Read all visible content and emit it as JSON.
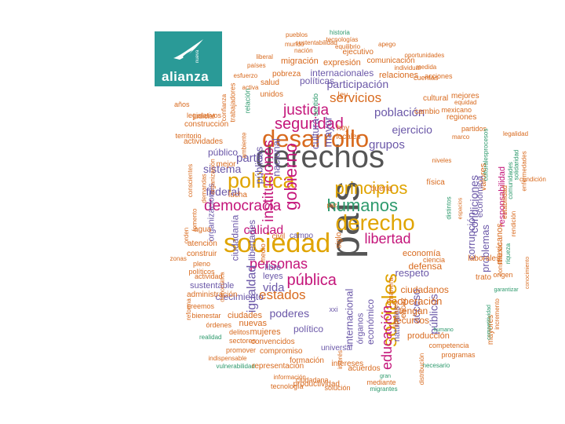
{
  "logo": {
    "brand": "alianza",
    "small": "nueva"
  },
  "colors": {
    "orange": "#d86a1e",
    "gray": "#555555",
    "gold": "#e0a400",
    "purple": "#6b58a8",
    "magenta": "#c4157a",
    "green": "#2e9a6d",
    "teal": "#2a9a97"
  },
  "words": [
    [
      "derechos",
      "gray"
    ],
    [
      "país",
      "gray"
    ],
    [
      "sociedad",
      "gold"
    ],
    [
      "desarrollo",
      "orange"
    ],
    [
      "política",
      "gold"
    ],
    [
      "derecho",
      "gold"
    ],
    [
      "principios",
      "gold"
    ],
    [
      "sociales",
      "gold"
    ],
    [
      "humanos",
      "green"
    ],
    [
      "democracia",
      "magenta"
    ],
    [
      "seguridad",
      "magenta"
    ],
    [
      "justicia",
      "magenta"
    ],
    [
      "personas",
      "magenta"
    ],
    [
      "pública",
      "magenta"
    ],
    [
      "libertad",
      "magenta"
    ],
    [
      "gobierno",
      "magenta"
    ],
    [
      "instituciones",
      "magenta"
    ],
    [
      "calidad",
      "magenta"
    ],
    [
      "educación",
      "magenta"
    ],
    [
      "igualdad",
      "purple"
    ],
    [
      "servicios",
      "orange"
    ],
    [
      "estados",
      "orange"
    ],
    [
      "población",
      "purple"
    ],
    [
      "públicos",
      "purple"
    ],
    [
      "acceso",
      "purple"
    ],
    [
      "vida",
      "purple"
    ],
    [
      "poderes",
      "purple"
    ],
    [
      "grupos",
      "purple"
    ],
    [
      "ejercicio",
      "purple"
    ],
    [
      "participación",
      "purple"
    ],
    [
      "parte",
      "purple"
    ],
    [
      "sistema",
      "purple"
    ],
    [
      "federal",
      "purple"
    ],
    [
      "mayor",
      "purple"
    ],
    [
      "cultura",
      "purple"
    ],
    [
      "nacional",
      "purple"
    ],
    [
      "públicas",
      "purple"
    ],
    [
      "respeto",
      "purple"
    ],
    [
      "defensa",
      "orange"
    ],
    [
      "ciudadanos",
      "orange"
    ],
    [
      "cooperación",
      "orange"
    ],
    [
      "tengan",
      "orange"
    ],
    [
      "recursos",
      "orange"
    ],
    [
      "crecimiento",
      "purple"
    ],
    [
      "sustentable",
      "purple"
    ],
    [
      "leyes",
      "purple"
    ],
    [
      "libre",
      "purple"
    ],
    [
      "político",
      "purple"
    ],
    [
      "mujeres",
      "orange"
    ],
    [
      "convencidos",
      "orange"
    ],
    [
      "compromiso",
      "orange"
    ],
    [
      "nuevas",
      "orange"
    ],
    [
      "ciudades",
      "orange"
    ],
    [
      "expresión",
      "orange"
    ],
    [
      "internacionales",
      "purple"
    ],
    [
      "políticas",
      "purple"
    ],
    [
      "relaciones",
      "orange"
    ],
    [
      "migración",
      "orange"
    ],
    [
      "pobreza",
      "orange"
    ],
    [
      "salud",
      "orange"
    ],
    [
      "unidos",
      "orange"
    ],
    [
      "ley",
      "orange"
    ],
    [
      "hoy",
      "orange"
    ],
    [
      "locales",
      "orange"
    ],
    [
      "cambio",
      "orange"
    ],
    [
      "regiones",
      "orange"
    ],
    [
      "cultural",
      "orange"
    ],
    [
      "mejores",
      "orange"
    ],
    [
      "mexicano",
      "orange"
    ],
    [
      "partidos",
      "orange"
    ],
    [
      "valores",
      "orange"
    ],
    [
      "condiciones",
      "purple"
    ],
    [
      "corrupción",
      "purple"
    ],
    [
      "económica",
      "purple"
    ],
    [
      "responsabilidad",
      "magenta"
    ],
    [
      "problemas",
      "purple"
    ],
    [
      "mexicanos",
      "orange"
    ],
    [
      "laborales",
      "orange"
    ],
    [
      "trato",
      "orange"
    ],
    [
      "origen",
      "orange"
    ],
    [
      "economía",
      "orange"
    ],
    [
      "buena",
      "orange"
    ],
    [
      "física",
      "orange"
    ],
    [
      "campo",
      "purple"
    ],
    [
      "civil",
      "orange"
    ],
    [
      "siglo",
      "orange"
    ],
    [
      "paz",
      "orange"
    ],
    [
      "público",
      "purple"
    ],
    [
      "mejor",
      "orange"
    ],
    [
      "lucha",
      "orange"
    ],
    [
      "ciudadanía",
      "purple"
    ],
    [
      "libertades",
      "purple"
    ],
    [
      "organizaciones",
      "purple"
    ],
    [
      "agua",
      "orange"
    ],
    [
      "atención",
      "orange"
    ],
    [
      "construir",
      "orange"
    ],
    [
      "pleno",
      "orange"
    ],
    [
      "zonas",
      "orange"
    ],
    [
      "políticos",
      "orange"
    ],
    [
      "actividad",
      "orange"
    ],
    [
      "administración",
      "orange"
    ],
    [
      "creemos",
      "orange"
    ],
    [
      "bienestar",
      "orange"
    ],
    [
      "órdenes",
      "orange"
    ],
    [
      "delitos",
      "orange"
    ],
    [
      "sectores",
      "orange"
    ],
    [
      "promover",
      "orange"
    ],
    [
      "indispensable",
      "orange"
    ],
    [
      "vulnerabilidad",
      "green"
    ],
    [
      "realidad",
      "green"
    ],
    [
      "representación",
      "orange"
    ],
    [
      "formación",
      "orange"
    ],
    [
      "información",
      "orange"
    ],
    [
      "ciudadana",
      "orange"
    ],
    [
      "productividad",
      "orange"
    ],
    [
      "tecnología",
      "orange"
    ],
    [
      "solución",
      "orange"
    ],
    [
      "mediante",
      "orange"
    ],
    [
      "migrantes",
      "green"
    ],
    [
      "universal",
      "purple"
    ],
    [
      "intereses",
      "orange"
    ],
    [
      "acuerdos",
      "orange"
    ],
    [
      "órganos",
      "purple"
    ],
    [
      "internacional",
      "purple"
    ],
    [
      "económico",
      "purple"
    ],
    [
      "naturales",
      "purple"
    ],
    [
      "eficaz",
      "orange"
    ],
    [
      "liberales",
      "orange"
    ],
    [
      "manera",
      "orange"
    ],
    [
      "xxi",
      "purple"
    ],
    [
      "medio",
      "orange"
    ],
    [
      "producción",
      "orange"
    ],
    [
      "competencia",
      "orange"
    ],
    [
      "programas",
      "orange"
    ],
    [
      "necesario",
      "green"
    ],
    [
      "mayores",
      "orange"
    ],
    [
      "competitividad",
      "green"
    ],
    [
      "incremento",
      "orange"
    ],
    [
      "garantizar",
      "green"
    ],
    [
      "humano",
      "green"
    ],
    [
      "gran",
      "green"
    ],
    [
      "distribución",
      "orange"
    ],
    [
      "interés",
      "orange"
    ],
    [
      "actividades",
      "orange"
    ],
    [
      "construcción",
      "orange"
    ],
    [
      "territorio",
      "orange"
    ],
    [
      "judicial",
      "orange"
    ],
    [
      "legislativos",
      "orange"
    ],
    [
      "años",
      "orange"
    ],
    [
      "trabajadores",
      "orange"
    ],
    [
      "confianza",
      "orange"
    ],
    [
      "esfuerzo",
      "orange"
    ],
    [
      "activa",
      "orange"
    ],
    [
      "relación",
      "green"
    ],
    [
      "sentido",
      "green"
    ],
    [
      "liberal",
      "orange"
    ],
    [
      "países",
      "orange"
    ],
    [
      "mundo",
      "orange"
    ],
    [
      "pueblos",
      "orange"
    ],
    [
      "historia",
      "green"
    ],
    [
      "tecnologías",
      "orange"
    ],
    [
      "sustentabilidad",
      "orange"
    ],
    [
      "equilibrio",
      "orange"
    ],
    [
      "apego",
      "orange"
    ],
    [
      "nación",
      "orange"
    ],
    [
      "ejecutivo",
      "orange"
    ],
    [
      "comunicación",
      "orange"
    ],
    [
      "oportunidades",
      "orange"
    ],
    [
      "individual",
      "orange"
    ],
    [
      "medida",
      "orange"
    ],
    [
      "cuentas",
      "orange"
    ],
    [
      "acciones",
      "orange"
    ],
    [
      "equidad",
      "orange"
    ],
    [
      "legalidad",
      "orange"
    ],
    [
      "comunidades",
      "green"
    ],
    [
      "solidaridad",
      "green"
    ],
    [
      "enfermedades",
      "orange"
    ],
    [
      "estabilidad",
      "orange"
    ],
    [
      "rendición",
      "orange"
    ],
    [
      "condición",
      "orange"
    ],
    [
      "constitución",
      "orange"
    ],
    [
      "riqueza",
      "green"
    ],
    [
      "conocimiento",
      "orange"
    ],
    [
      "marco",
      "orange"
    ],
    [
      "culturalesprocesos",
      "green"
    ],
    [
      "niveles",
      "orange"
    ],
    [
      "espacios",
      "orange"
    ],
    [
      "ciencia",
      "orange"
    ],
    [
      "distintos",
      "green"
    ],
    [
      "orden",
      "orange"
    ],
    [
      "fomento",
      "orange"
    ],
    [
      "demandas",
      "orange"
    ],
    [
      "organización",
      "orange"
    ],
    [
      "conscientes",
      "orange"
    ],
    [
      "ambiente",
      "orange"
    ],
    [
      "reforma",
      "orange"
    ],
    [
      "democrática",
      "orange"
    ],
    [
      "pugnamos",
      "orange"
    ],
    [
      "hombres",
      "orange"
    ]
  ]
}
